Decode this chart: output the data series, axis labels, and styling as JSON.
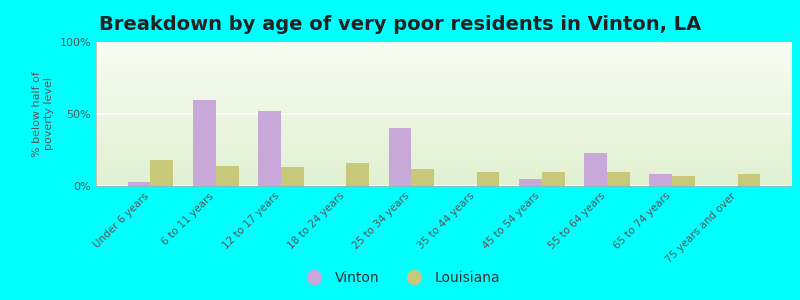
{
  "title": "Breakdown by age of very poor residents in Vinton, LA",
  "ylabel": "% below half of\npoverty level",
  "categories": [
    "Under 6 years",
    "6 to 11 years",
    "12 to 17 years",
    "18 to 24 years",
    "25 to 34 years",
    "35 to 44 years",
    "45 to 54 years",
    "55 to 64 years",
    "65 to 74 years",
    "75 years and over"
  ],
  "vinton": [
    3,
    60,
    52,
    0,
    40,
    0,
    5,
    23,
    8,
    0
  ],
  "louisiana": [
    18,
    14,
    13,
    16,
    12,
    10,
    10,
    10,
    7,
    8
  ],
  "vinton_color": "#c8a8d8",
  "louisiana_color": "#c8c87a",
  "outer_bg": "#00ffff",
  "ylim": [
    0,
    100
  ],
  "yticks": [
    0,
    50,
    100
  ],
  "ytick_labels": [
    "0%",
    "50%",
    "100%"
  ],
  "bar_width": 0.35,
  "title_fontsize": 14,
  "axis_label_fontsize": 8,
  "tick_fontsize": 8,
  "legend_labels": [
    "Vinton",
    "Louisiana"
  ]
}
